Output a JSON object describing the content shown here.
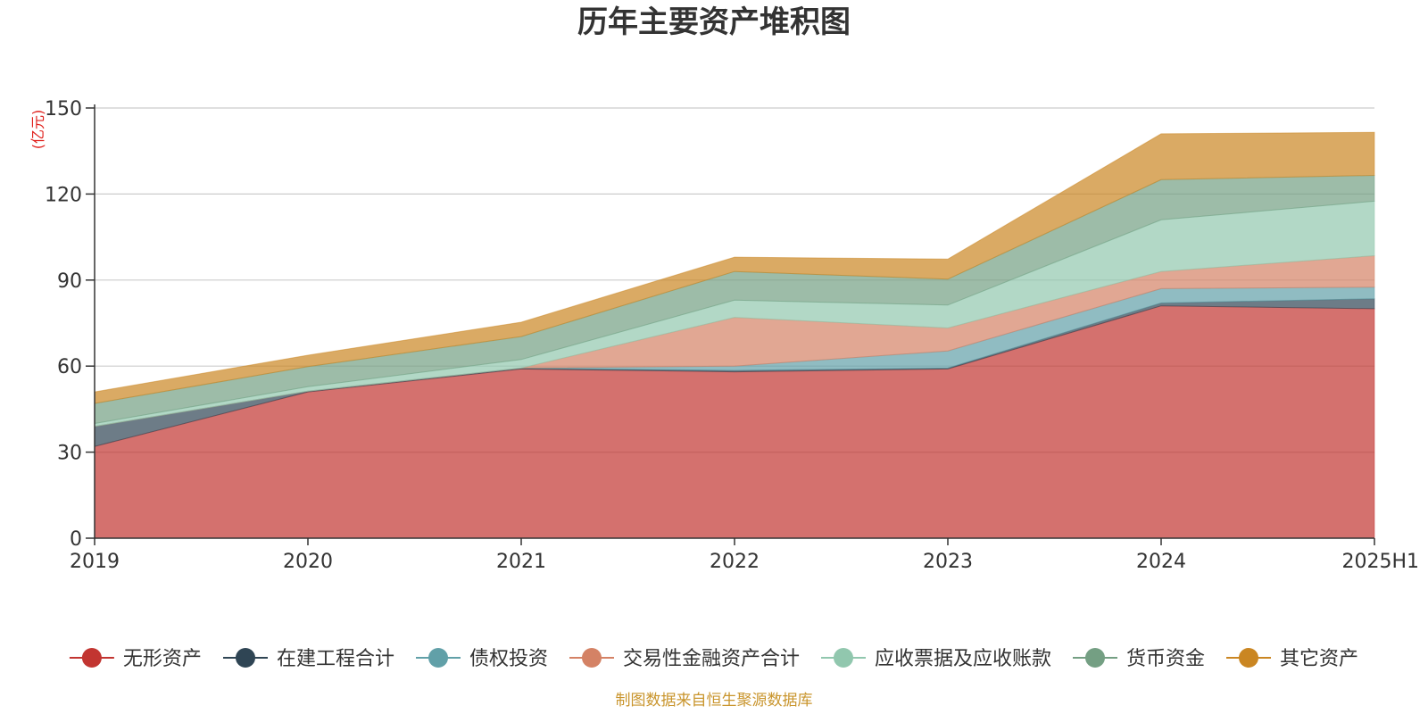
{
  "chart_data": {
    "type": "area",
    "stacked": true,
    "title": "历年主要资产堆积图",
    "unit_label": "(亿元)",
    "categories": [
      "2019",
      "2020",
      "2021",
      "2022",
      "2023",
      "2024",
      "2025H1"
    ],
    "ylim": [
      0,
      150
    ],
    "yticks": [
      0,
      30,
      60,
      90,
      120,
      150
    ],
    "grid": true,
    "legend_position": "bottom",
    "series": [
      {
        "name": "无形资产",
        "color": "#c23531",
        "values": [
          32,
          51,
          59,
          58,
          59,
          81,
          80
        ]
      },
      {
        "name": "在建工程合计",
        "color": "#2f4554",
        "values": [
          7,
          0.3,
          0.3,
          0.5,
          0.3,
          1,
          3.5
        ]
      },
      {
        "name": "债权投资",
        "color": "#61a0a8",
        "values": [
          0,
          0,
          0,
          1.5,
          6,
          5,
          4
        ]
      },
      {
        "name": "交易性金融资产合计",
        "color": "#d48265",
        "values": [
          0,
          0,
          0,
          17,
          8,
          6,
          11
        ]
      },
      {
        "name": "应收票据及应收账款",
        "color": "#91c7ae",
        "values": [
          1,
          1.5,
          3,
          6,
          8,
          18,
          19
        ]
      },
      {
        "name": "货币资金",
        "color": "#749f83",
        "values": [
          7,
          7,
          8,
          10,
          9,
          14,
          9
        ]
      },
      {
        "name": "其它资产",
        "color": "#ca8622",
        "values": [
          4,
          4,
          5,
          5,
          7,
          16,
          15
        ]
      }
    ]
  },
  "footer": {
    "source": "制图数据来自恒生聚源数据库",
    "source_color": "#c9952d"
  }
}
